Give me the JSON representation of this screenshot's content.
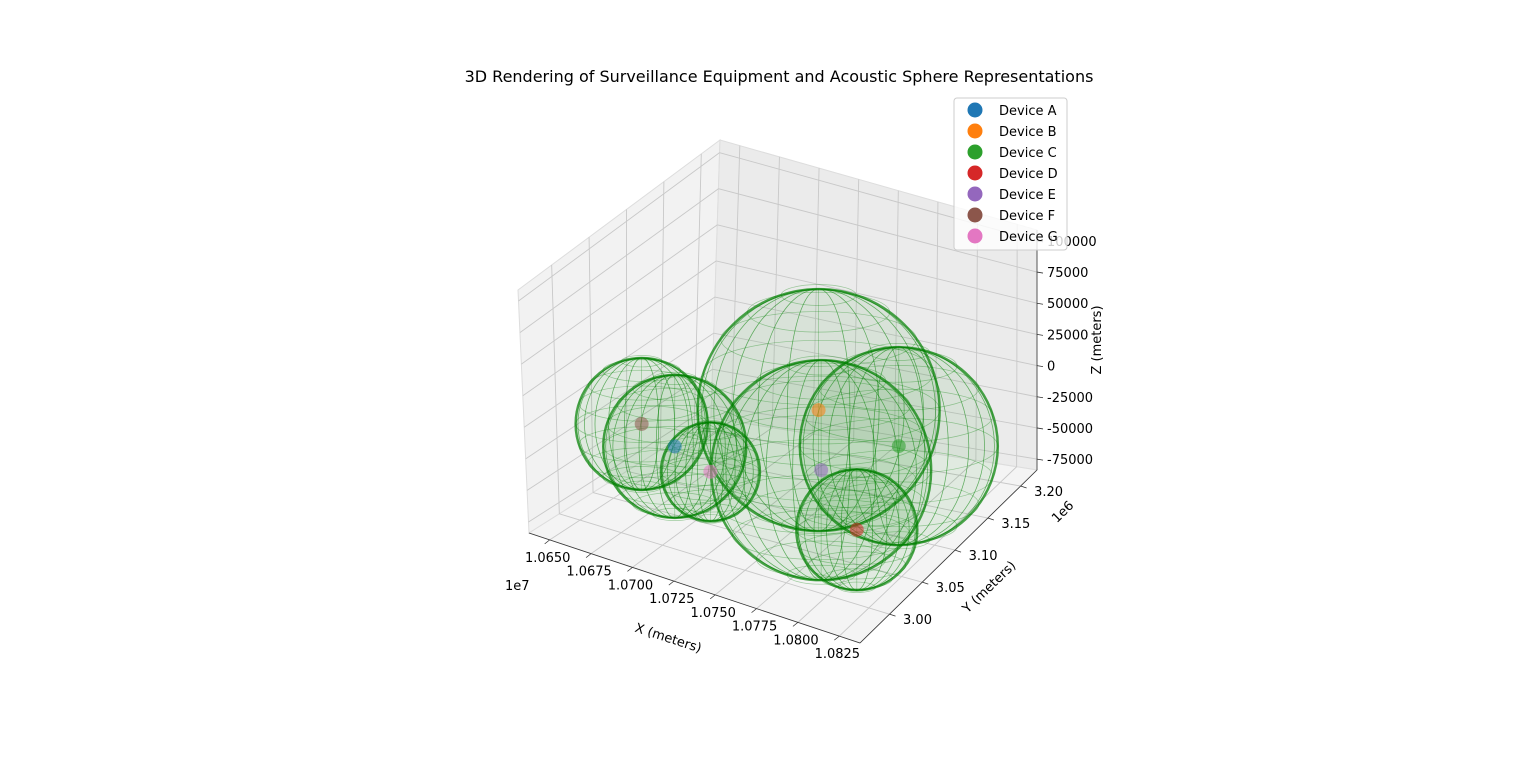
{
  "chart_data": {
    "type": "scatter",
    "projection": "3d",
    "title": "3D Rendering of Surveillance Equipment and Acoustic Sphere Representations",
    "xlabel": "X (meters)",
    "ylabel": "Y (meters)",
    "zlabel": "Z (meters)",
    "x_offset_label": "1e7",
    "y_offset_label": "1e6",
    "x_ticks": [
      "1.0650",
      "1.0675",
      "1.0700",
      "1.0725",
      "1.0750",
      "1.0775",
      "1.0800",
      "1.0825"
    ],
    "y_ticks": [
      "3.00",
      "3.05",
      "3.10",
      "3.15",
      "3.20"
    ],
    "z_ticks": [
      "-75000",
      "-50000",
      "-25000",
      "0",
      "25000",
      "50000",
      "75000",
      "100000"
    ],
    "grid": true,
    "legend_position": "top-right",
    "sphere_color": "#008000",
    "series": [
      {
        "name": "Device A",
        "color": "#1f77b4",
        "x": 10690000,
        "y": 3060000,
        "z": -30000,
        "radius": 65000
      },
      {
        "name": "Device B",
        "color": "#ff7f0e",
        "x": 10760000,
        "y": 3100000,
        "z": 20000,
        "radius": 110000
      },
      {
        "name": "Device C",
        "color": "#2ca02c",
        "x": 10800000,
        "y": 3120000,
        "z": 0,
        "radius": 90000
      },
      {
        "name": "Device D",
        "color": "#d62728",
        "x": 10800000,
        "y": 3060000,
        "z": -50000,
        "radius": 55000
      },
      {
        "name": "Device E",
        "color": "#9467bd",
        "x": 10770000,
        "y": 3080000,
        "z": -20000,
        "radius": 100000
      },
      {
        "name": "Device F",
        "color": "#8c564b",
        "x": 10670000,
        "y": 3060000,
        "z": -20000,
        "radius": 60000
      },
      {
        "name": "Device G",
        "color": "#e377c2",
        "x": 10720000,
        "y": 3040000,
        "z": -30000,
        "radius": 45000
      }
    ]
  }
}
